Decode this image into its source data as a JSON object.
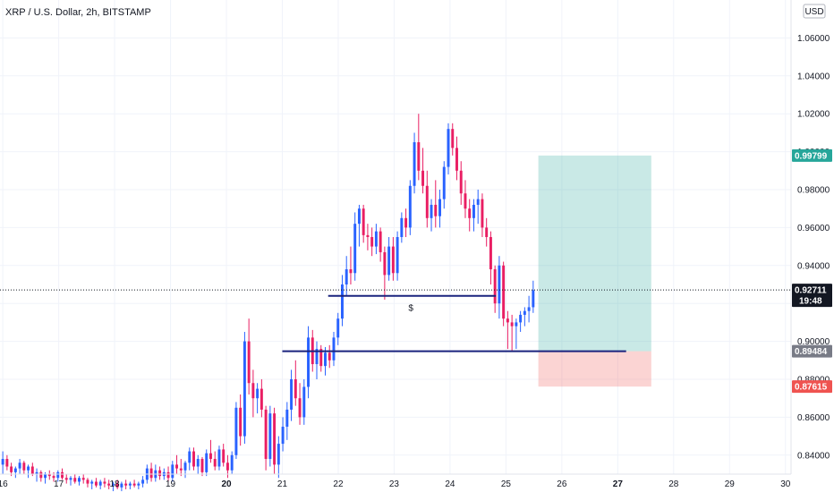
{
  "chart_data": {
    "type": "candlestick",
    "title": "XRP / U.S. Dollar, 2h, BITSTAMP",
    "currency": "USD",
    "ylim": [
      0.83,
      1.08
    ],
    "y_ticks": [
      {
        "value": 0.84,
        "label": "0.84000"
      },
      {
        "value": 0.86,
        "label": "0.86000"
      },
      {
        "value": 0.88,
        "label": "0.88000"
      },
      {
        "value": 0.9,
        "label": "0.90000"
      },
      {
        "value": 0.92,
        "label": "0.92000"
      },
      {
        "value": 0.94,
        "label": "0.94000"
      },
      {
        "value": 0.96,
        "label": "0.96000"
      },
      {
        "value": 0.98,
        "label": "0.98000"
      },
      {
        "value": 1.0,
        "label": "1.00000"
      },
      {
        "value": 1.02,
        "label": "1.02000"
      },
      {
        "value": 1.04,
        "label": "1.04000"
      },
      {
        "value": 1.06,
        "label": "1.06000"
      }
    ],
    "x_range": [
      15.95,
      30.1
    ],
    "x_ticks": [
      {
        "value": 16,
        "label": "16"
      },
      {
        "value": 17,
        "label": "17"
      },
      {
        "value": 18,
        "label": "18"
      },
      {
        "value": 19,
        "label": "19"
      },
      {
        "value": 20,
        "label": "20",
        "bold": true
      },
      {
        "value": 21,
        "label": "21"
      },
      {
        "value": 22,
        "label": "22"
      },
      {
        "value": 23,
        "label": "23"
      },
      {
        "value": 24,
        "label": "24"
      },
      {
        "value": 25,
        "label": "25"
      },
      {
        "value": 26,
        "label": "26"
      },
      {
        "value": 27,
        "label": "27",
        "bold": true
      },
      {
        "value": 28,
        "label": "28"
      },
      {
        "value": 29,
        "label": "29"
      },
      {
        "value": 30,
        "label": "30"
      }
    ],
    "colors": {
      "up": "#2962ff",
      "down": "#e91e63",
      "level": "#1a237e",
      "target": "#26a69a",
      "stop": "#ef5350",
      "axis_tag": "#787b86"
    },
    "candles_ohlc": [
      [
        0.835,
        0.842,
        0.83,
        0.838
      ],
      [
        0.838,
        0.84,
        0.832,
        0.834
      ],
      [
        0.834,
        0.836,
        0.829,
        0.831
      ],
      [
        0.831,
        0.834,
        0.828,
        0.833
      ],
      [
        0.833,
        0.838,
        0.83,
        0.836
      ],
      [
        0.836,
        0.837,
        0.83,
        0.832
      ],
      [
        0.832,
        0.835,
        0.828,
        0.834
      ],
      [
        0.834,
        0.836,
        0.829,
        0.83
      ],
      [
        0.83,
        0.833,
        0.826,
        0.831
      ],
      [
        0.831,
        0.832,
        0.826,
        0.828
      ],
      [
        0.828,
        0.831,
        0.825,
        0.83
      ],
      [
        0.83,
        0.832,
        0.827,
        0.829
      ],
      [
        0.829,
        0.831,
        0.826,
        0.828
      ],
      [
        0.828,
        0.832,
        0.826,
        0.831
      ],
      [
        0.831,
        0.833,
        0.827,
        0.828
      ],
      [
        0.828,
        0.83,
        0.825,
        0.827
      ],
      [
        0.827,
        0.829,
        0.824,
        0.828
      ],
      [
        0.828,
        0.83,
        0.825,
        0.826
      ],
      [
        0.826,
        0.829,
        0.824,
        0.828
      ],
      [
        0.828,
        0.83,
        0.825,
        0.827
      ],
      [
        0.827,
        0.828,
        0.823,
        0.825
      ],
      [
        0.825,
        0.827,
        0.822,
        0.826
      ],
      [
        0.826,
        0.828,
        0.823,
        0.824
      ],
      [
        0.824,
        0.827,
        0.822,
        0.826
      ],
      [
        0.826,
        0.828,
        0.823,
        0.825
      ],
      [
        0.825,
        0.827,
        0.822,
        0.824
      ],
      [
        0.824,
        0.826,
        0.821,
        0.825
      ],
      [
        0.825,
        0.827,
        0.822,
        0.823
      ],
      [
        0.823,
        0.826,
        0.821,
        0.825
      ],
      [
        0.825,
        0.827,
        0.822,
        0.824
      ],
      [
        0.824,
        0.826,
        0.822,
        0.825
      ],
      [
        0.825,
        0.827,
        0.823,
        0.824
      ],
      [
        0.824,
        0.826,
        0.822,
        0.825
      ],
      [
        0.825,
        0.829,
        0.823,
        0.827
      ],
      [
        0.827,
        0.835,
        0.825,
        0.833
      ],
      [
        0.833,
        0.836,
        0.826,
        0.828
      ],
      [
        0.828,
        0.835,
        0.826,
        0.832
      ],
      [
        0.832,
        0.834,
        0.827,
        0.829
      ],
      [
        0.829,
        0.833,
        0.827,
        0.831
      ],
      [
        0.831,
        0.834,
        0.826,
        0.828
      ],
      [
        0.828,
        0.837,
        0.826,
        0.835
      ],
      [
        0.835,
        0.84,
        0.83,
        0.833
      ],
      [
        0.833,
        0.838,
        0.829,
        0.832
      ],
      [
        0.832,
        0.837,
        0.828,
        0.836
      ],
      [
        0.836,
        0.844,
        0.832,
        0.842
      ],
      [
        0.842,
        0.844,
        0.832,
        0.834
      ],
      [
        0.834,
        0.84,
        0.83,
        0.838
      ],
      [
        0.838,
        0.839,
        0.829,
        0.831
      ],
      [
        0.831,
        0.843,
        0.829,
        0.841
      ],
      [
        0.841,
        0.848,
        0.836,
        0.838
      ],
      [
        0.838,
        0.842,
        0.832,
        0.834
      ],
      [
        0.834,
        0.845,
        0.832,
        0.843
      ],
      [
        0.843,
        0.846,
        0.834,
        0.836
      ],
      [
        0.836,
        0.84,
        0.828,
        0.832
      ],
      [
        0.832,
        0.842,
        0.83,
        0.84
      ],
      [
        0.84,
        0.868,
        0.838,
        0.865
      ],
      [
        0.865,
        0.872,
        0.845,
        0.85
      ],
      [
        0.85,
        0.905,
        0.846,
        0.9
      ],
      [
        0.9,
        0.912,
        0.872,
        0.878
      ],
      [
        0.878,
        0.885,
        0.86,
        0.87
      ],
      [
        0.87,
        0.878,
        0.862,
        0.875
      ],
      [
        0.875,
        0.88,
        0.86,
        0.864
      ],
      [
        0.864,
        0.866,
        0.832,
        0.838
      ],
      [
        0.838,
        0.866,
        0.834,
        0.862
      ],
      [
        0.862,
        0.865,
        0.83,
        0.835
      ],
      [
        0.835,
        0.85,
        0.828,
        0.846
      ],
      [
        0.846,
        0.86,
        0.842,
        0.855
      ],
      [
        0.855,
        0.868,
        0.848,
        0.864
      ],
      [
        0.864,
        0.885,
        0.858,
        0.88
      ],
      [
        0.88,
        0.89,
        0.866,
        0.87
      ],
      [
        0.87,
        0.878,
        0.856,
        0.86
      ],
      [
        0.86,
        0.88,
        0.856,
        0.876
      ],
      [
        0.876,
        0.908,
        0.87,
        0.902
      ],
      [
        0.902,
        0.906,
        0.884,
        0.888
      ],
      [
        0.888,
        0.9,
        0.88,
        0.896
      ],
      [
        0.896,
        0.898,
        0.884,
        0.887
      ],
      [
        0.887,
        0.897,
        0.882,
        0.894
      ],
      [
        0.894,
        0.898,
        0.886,
        0.89
      ],
      [
        0.89,
        0.905,
        0.887,
        0.902
      ],
      [
        0.902,
        0.915,
        0.898,
        0.912
      ],
      [
        0.912,
        0.935,
        0.908,
        0.93
      ],
      [
        0.93,
        0.945,
        0.924,
        0.938
      ],
      [
        0.938,
        0.95,
        0.93,
        0.936
      ],
      [
        0.936,
        0.968,
        0.932,
        0.962
      ],
      [
        0.962,
        0.972,
        0.95,
        0.97
      ],
      [
        0.97,
        0.972,
        0.952,
        0.956
      ],
      [
        0.956,
        0.962,
        0.948,
        0.955
      ],
      [
        0.955,
        0.96,
        0.945,
        0.95
      ],
      [
        0.95,
        0.962,
        0.946,
        0.958
      ],
      [
        0.958,
        0.96,
        0.942,
        0.947
      ],
      [
        0.947,
        0.95,
        0.922,
        0.935
      ],
      [
        0.935,
        0.955,
        0.932,
        0.95
      ],
      [
        0.95,
        0.955,
        0.932,
        0.936
      ],
      [
        0.936,
        0.958,
        0.932,
        0.955
      ],
      [
        0.955,
        0.968,
        0.952,
        0.965
      ],
      [
        0.965,
        0.97,
        0.955,
        0.96
      ],
      [
        0.96,
        0.985,
        0.956,
        0.982
      ],
      [
        0.982,
        1.01,
        0.978,
        1.005
      ],
      [
        1.005,
        1.02,
        0.985,
        0.99
      ],
      [
        0.99,
        1.002,
        0.978,
        0.982
      ],
      [
        0.982,
        0.99,
        0.96,
        0.965
      ],
      [
        0.965,
        0.975,
        0.958,
        0.972
      ],
      [
        0.972,
        0.985,
        0.96,
        0.966
      ],
      [
        0.966,
        0.98,
        0.96,
        0.975
      ],
      [
        0.975,
        0.995,
        0.97,
        0.992
      ],
      [
        0.992,
        1.015,
        0.988,
        1.012
      ],
      [
        1.012,
        1.015,
        0.998,
        1.002
      ],
      [
        1.002,
        1.008,
        0.985,
        0.99
      ],
      [
        0.99,
        0.995,
        0.972,
        0.978
      ],
      [
        0.978,
        0.985,
        0.965,
        0.97
      ],
      [
        0.97,
        0.975,
        0.958,
        0.965
      ],
      [
        0.965,
        0.975,
        0.958,
        0.972
      ],
      [
        0.972,
        0.98,
        0.962,
        0.975
      ],
      [
        0.975,
        0.978,
        0.955,
        0.96
      ],
      [
        0.96,
        0.965,
        0.95,
        0.955
      ],
      [
        0.955,
        0.958,
        0.93,
        0.938
      ],
      [
        0.938,
        0.94,
        0.915,
        0.92
      ],
      [
        0.92,
        0.945,
        0.912,
        0.94
      ],
      [
        0.94,
        0.942,
        0.908,
        0.912
      ],
      [
        0.912,
        0.916,
        0.896,
        0.91
      ],
      [
        0.91,
        0.914,
        0.895,
        0.908
      ],
      [
        0.908,
        0.912,
        0.896,
        0.91
      ],
      [
        0.91,
        0.916,
        0.905,
        0.914
      ],
      [
        0.914,
        0.918,
        0.908,
        0.916
      ],
      [
        0.916,
        0.924,
        0.91,
        0.918
      ],
      [
        0.918,
        0.932,
        0.915,
        0.927
      ]
    ],
    "candle_x_start": 16.0,
    "candle_x_step": 0.0759,
    "levels": [
      {
        "name": "level-upper",
        "y": 0.924,
        "x_from": 21.82,
        "x_to": 24.82
      },
      {
        "name": "level-lower",
        "y": 0.8948,
        "x_from": 21.0,
        "x_to": 27.15
      }
    ],
    "annotation": {
      "text": "$",
      "x": 23.3,
      "y": 0.916
    },
    "position": {
      "x_from": 25.58,
      "x_to": 27.6,
      "entry": 0.8948,
      "target": 0.99799,
      "stop": 0.87615
    },
    "current_price": 0.92711,
    "price_tags": [
      {
        "name": "target-price-tag",
        "value": 0.99799,
        "label": "0.99799",
        "color": "#26a69a"
      },
      {
        "name": "current-price-tag",
        "value": 0.92711,
        "label": "0.92711",
        "sub_label": "19:48",
        "color": "#131722"
      },
      {
        "name": "entry-price-tag",
        "value": 0.8948,
        "label": "0.89484",
        "color": "#787b86"
      },
      {
        "name": "stop-price-tag",
        "value": 0.87615,
        "label": "0.87615",
        "color": "#ef5350"
      }
    ]
  }
}
